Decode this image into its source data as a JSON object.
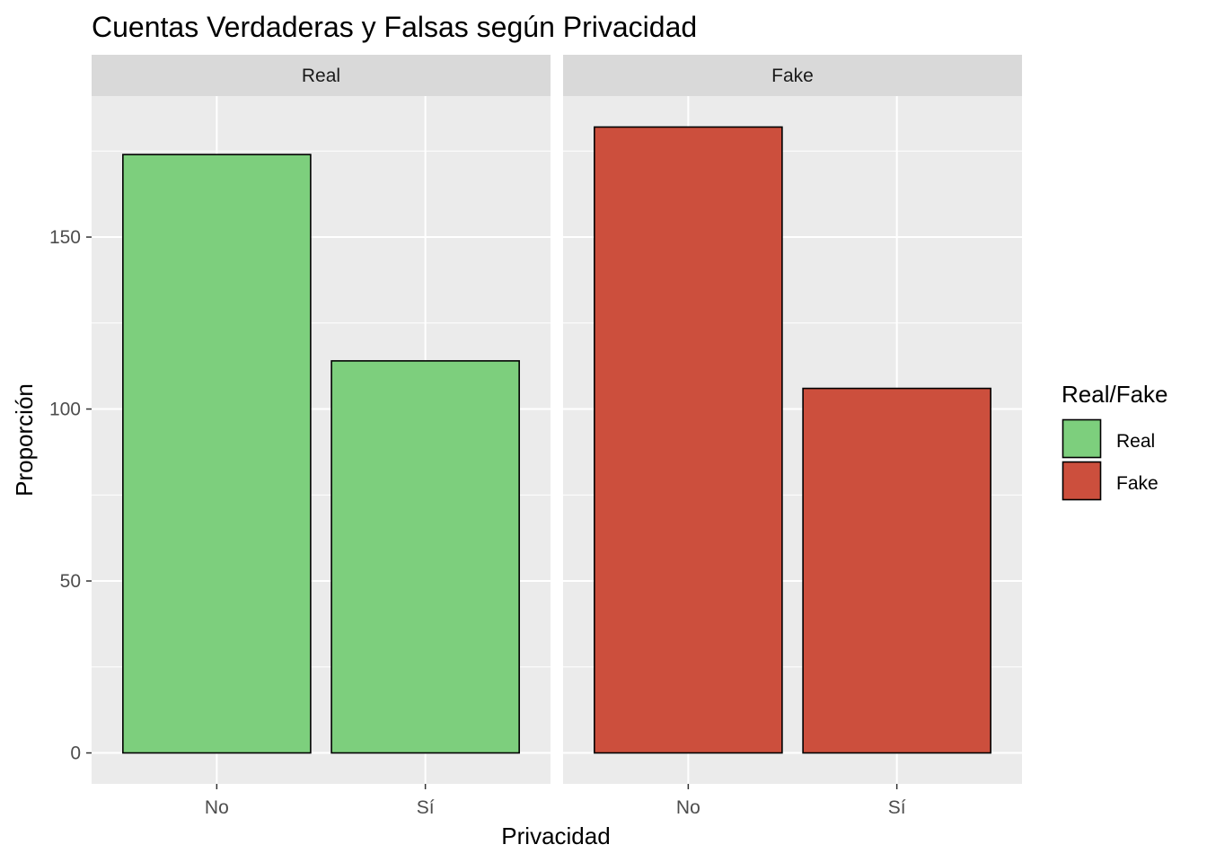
{
  "chart_data": {
    "type": "bar",
    "title": "Cuentas Verdaderas y Falsas según Privacidad",
    "xlabel": "Privacidad",
    "ylabel": "Proporción",
    "categories": [
      "No",
      "Sí"
    ],
    "ylim": [
      -9,
      191
    ],
    "y_ticks": [
      0,
      50,
      100,
      150
    ],
    "grid": true,
    "panels": [
      {
        "name": "Real",
        "color": "#7dcf7d",
        "values": [
          174,
          114
        ]
      },
      {
        "name": "Fake",
        "color": "#cc4f3d",
        "values": [
          182,
          106
        ]
      }
    ],
    "legend": {
      "title": "Real/Fake",
      "position": "right",
      "items": [
        {
          "label": "Real",
          "color": "#7dcf7d"
        },
        {
          "label": "Fake",
          "color": "#cc4f3d"
        }
      ]
    }
  }
}
